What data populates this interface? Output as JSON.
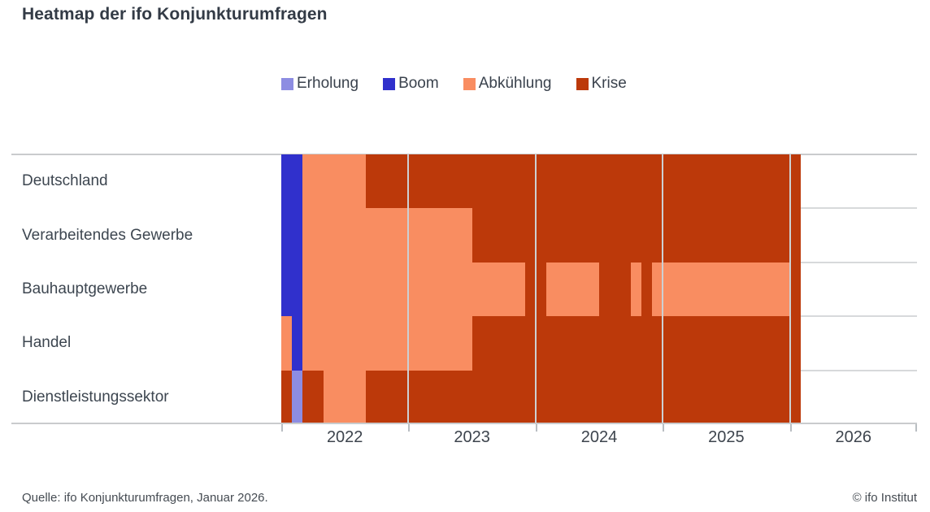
{
  "title": "Heatmap der ifo Konjunkturumfragen",
  "legend": [
    {
      "label": "Erholung"
    },
    {
      "label": "Boom"
    },
    {
      "label": "Abkühlung"
    },
    {
      "label": "Krise"
    }
  ],
  "colors": {
    "Erholung": "#8d8de2",
    "Boom": "#3030cc",
    "Abkühlung": "#f98d61",
    "Krise": "#bc390a"
  },
  "footer": {
    "source": "Quelle: ifo Konjunkturumfragen, Januar 2026.",
    "copyright": "© ifo Institut"
  },
  "chart_data": {
    "type": "heatmap",
    "title": "Heatmap der ifo Konjunkturumfragen",
    "x_unit": "month",
    "x_range_data": [
      "2022-01",
      "2026-01"
    ],
    "x_range_axis": [
      "2022-01",
      "2026-12"
    ],
    "x_tick_labels": [
      "2022",
      "2023",
      "2024",
      "2025",
      "2026"
    ],
    "categories_y": [
      "Deutschland",
      "Verarbeitendes Gewerbe",
      "Bauhauptgewerbe",
      "Handel",
      "Dienstleistungssektor"
    ],
    "phases": [
      "Erholung",
      "Boom",
      "Abkühlung",
      "Krise"
    ],
    "grid": "year-boundaries",
    "legend_position": "top",
    "rows": [
      {
        "label": "Deutschland",
        "segments": [
          {
            "from": "2022-01",
            "to": "2022-02",
            "phase": "Boom"
          },
          {
            "from": "2022-03",
            "to": "2022-08",
            "phase": "Abkühlung"
          },
          {
            "from": "2022-09",
            "to": "2026-01",
            "phase": "Krise"
          }
        ]
      },
      {
        "label": "Verarbeitendes Gewerbe",
        "segments": [
          {
            "from": "2022-01",
            "to": "2022-02",
            "phase": "Boom"
          },
          {
            "from": "2022-03",
            "to": "2023-06",
            "phase": "Abkühlung"
          },
          {
            "from": "2023-07",
            "to": "2026-01",
            "phase": "Krise"
          }
        ]
      },
      {
        "label": "Bauhauptgewerbe",
        "segments": [
          {
            "from": "2022-01",
            "to": "2022-02",
            "phase": "Boom"
          },
          {
            "from": "2022-03",
            "to": "2023-11",
            "phase": "Abkühlung"
          },
          {
            "from": "2023-12",
            "to": "2024-01",
            "phase": "Krise"
          },
          {
            "from": "2024-02",
            "to": "2024-06",
            "phase": "Abkühlung"
          },
          {
            "from": "2024-07",
            "to": "2024-09",
            "phase": "Krise"
          },
          {
            "from": "2024-10",
            "to": "2024-10",
            "phase": "Abkühlung"
          },
          {
            "from": "2024-11",
            "to": "2024-11",
            "phase": "Krise"
          },
          {
            "from": "2024-12",
            "to": "2025-12",
            "phase": "Abkühlung"
          },
          {
            "from": "2026-01",
            "to": "2026-01",
            "phase": "Krise"
          }
        ]
      },
      {
        "label": "Handel",
        "segments": [
          {
            "from": "2022-01",
            "to": "2022-01",
            "phase": "Abkühlung"
          },
          {
            "from": "2022-02",
            "to": "2022-02",
            "phase": "Boom"
          },
          {
            "from": "2022-03",
            "to": "2023-06",
            "phase": "Abkühlung"
          },
          {
            "from": "2023-07",
            "to": "2026-01",
            "phase": "Krise"
          }
        ]
      },
      {
        "label": "Dienstleistungssektor",
        "segments": [
          {
            "from": "2022-01",
            "to": "2022-01",
            "phase": "Krise"
          },
          {
            "from": "2022-02",
            "to": "2022-02",
            "phase": "Erholung"
          },
          {
            "from": "2022-03",
            "to": "2022-04",
            "phase": "Krise"
          },
          {
            "from": "2022-05",
            "to": "2022-08",
            "phase": "Abkühlung"
          },
          {
            "from": "2022-09",
            "to": "2026-01",
            "phase": "Krise"
          }
        ]
      }
    ]
  }
}
